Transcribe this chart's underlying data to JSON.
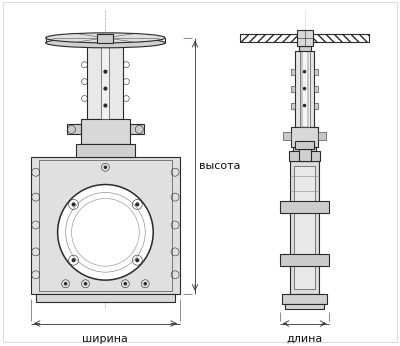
{
  "label_vysota": "высота",
  "label_shirina": "ширина",
  "label_dlina": "длина",
  "bg_color": "#ffffff",
  "line_color": "#2a2a2a",
  "dim_color": "#333333",
  "label_fontsize": 8.0,
  "label_color": "#111111"
}
